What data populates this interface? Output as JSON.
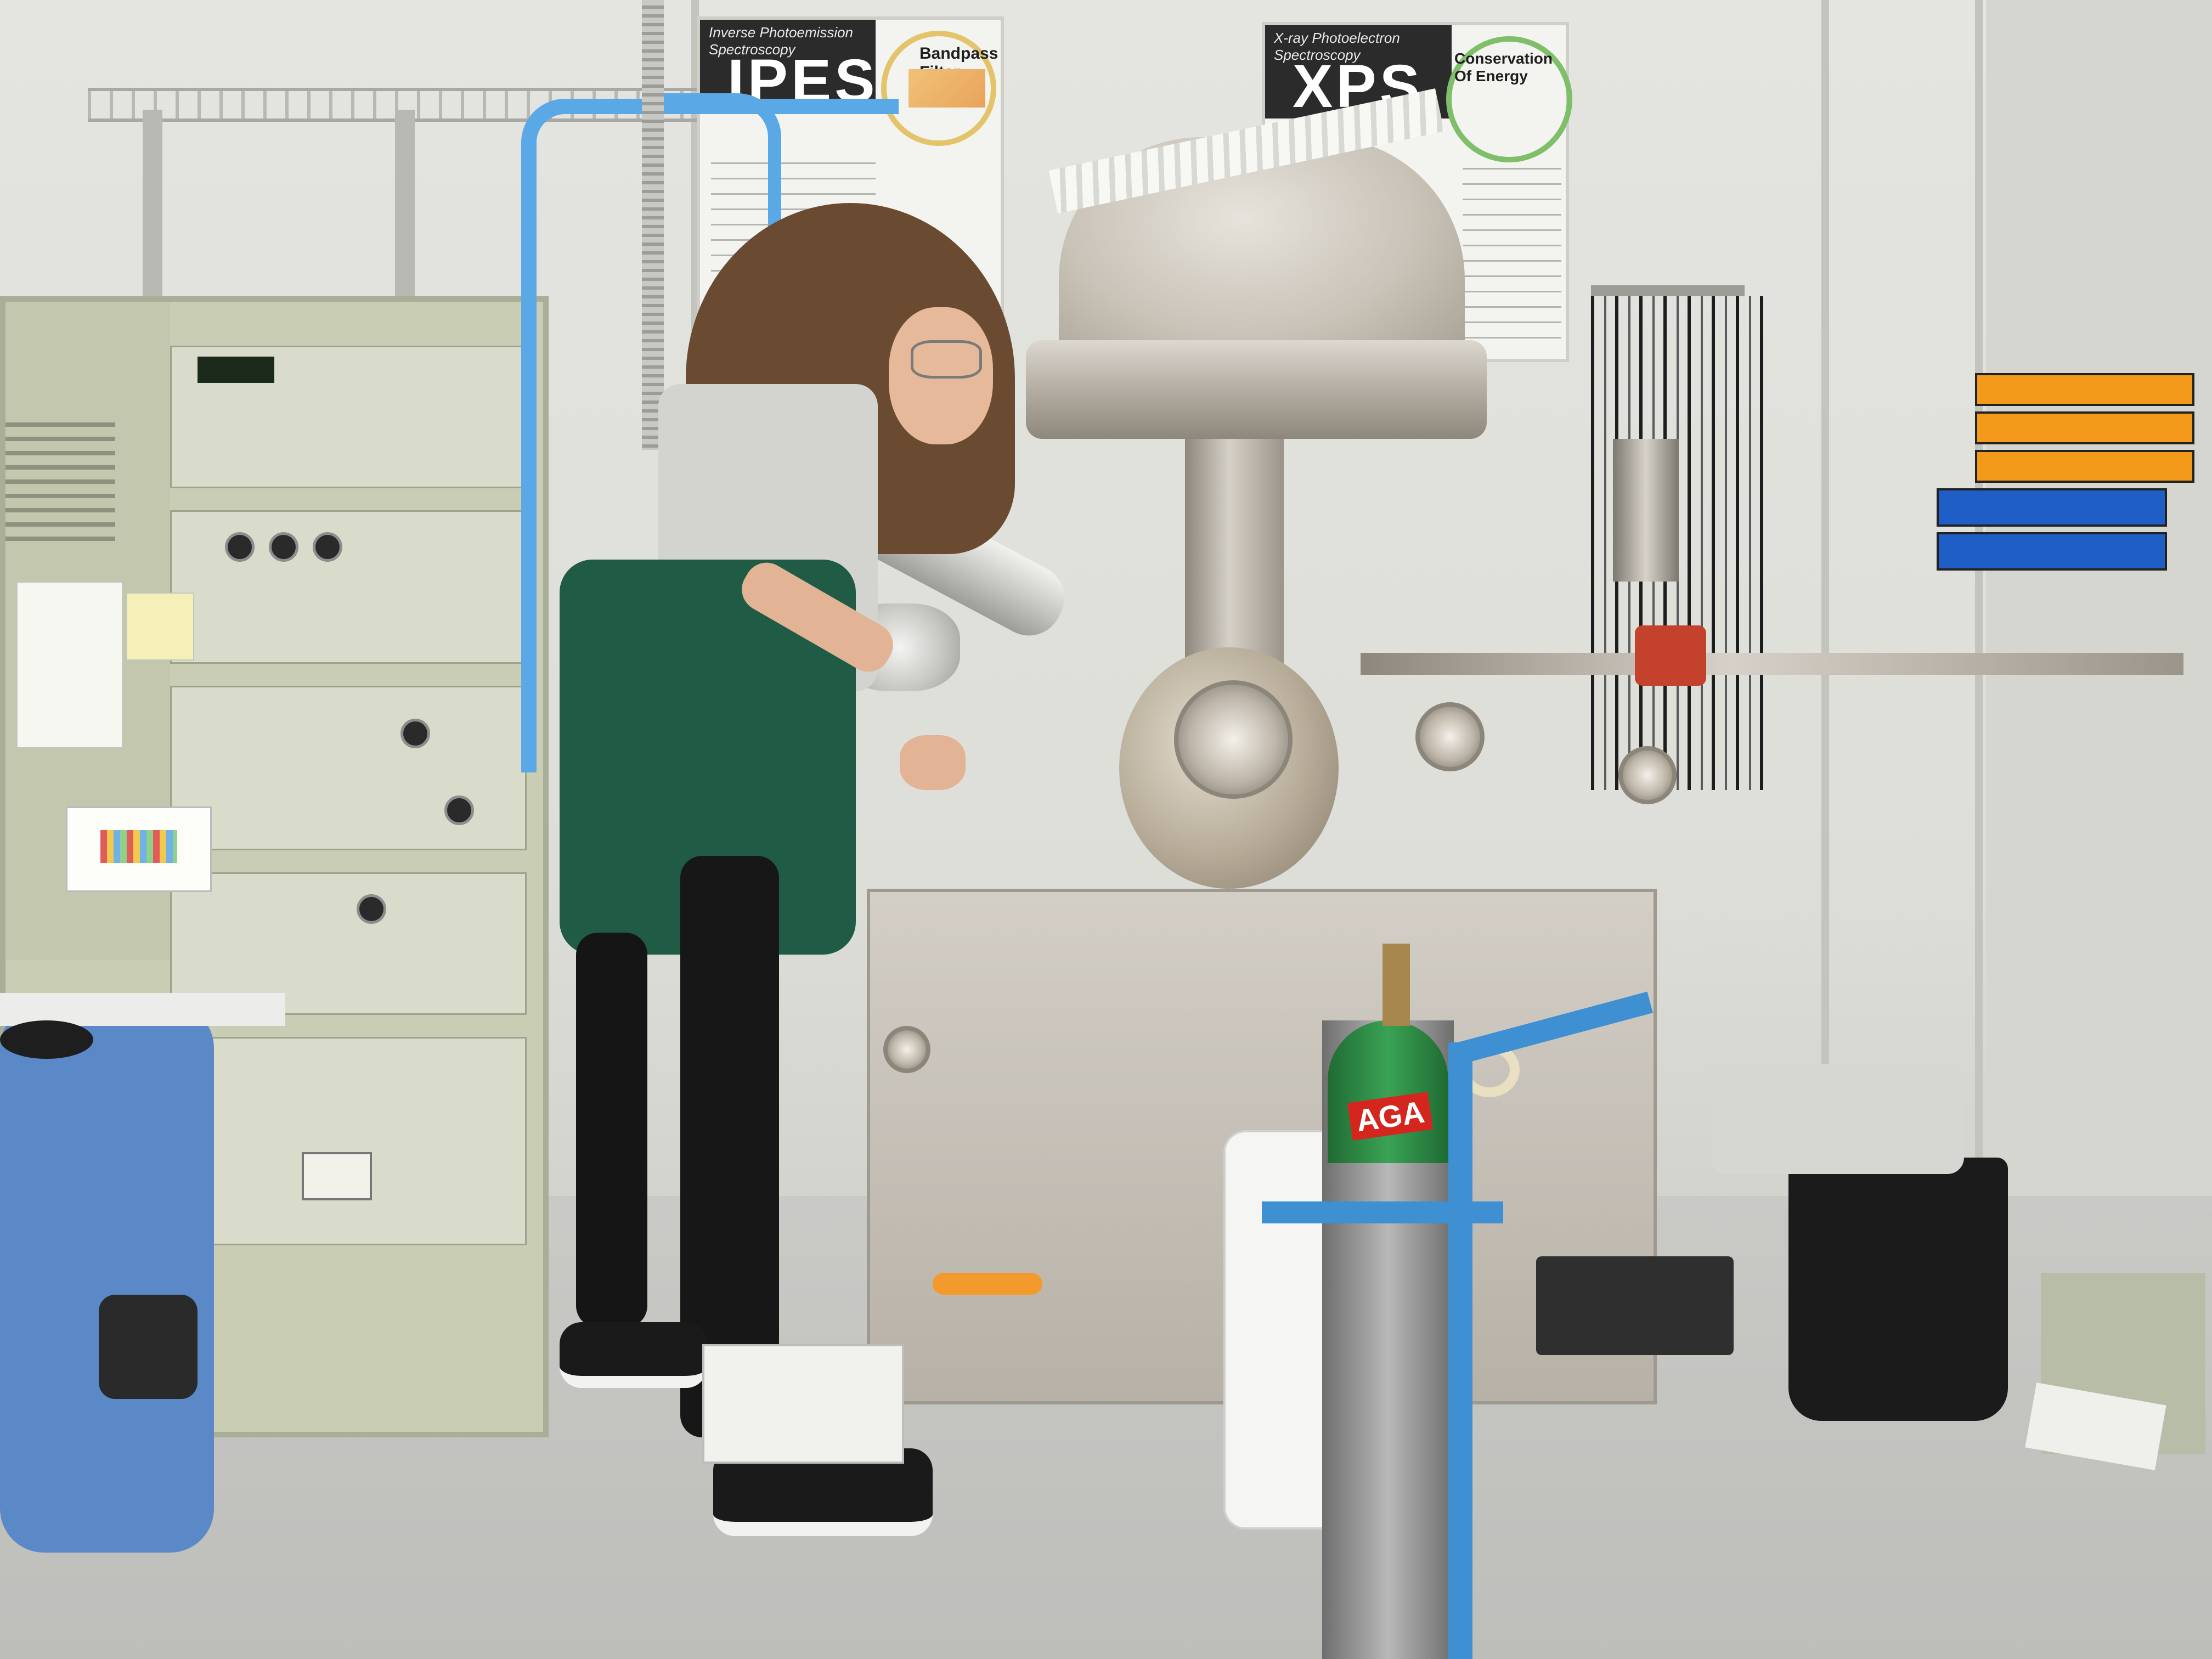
{
  "scene": {
    "description_label": "Photo: researcher at a surface science vacuum system in a laboratory"
  },
  "posters": [
    {
      "subtitle": "Inverse Photoemission Spectroscopy",
      "title": "IPES",
      "panel_title": "Bandpass Filter"
    },
    {
      "subtitle": "X-ray Photoelectron Spectroscopy",
      "title": "XPS",
      "panel_title": "Conservation Of Energy"
    }
  ],
  "cylinder": {
    "brand": "AGA"
  },
  "colors": {
    "wall": "#e2e2de",
    "floor": "#c4c4c1",
    "rack_beige": "#c8cdb4",
    "steel": "#c9c3b8",
    "cable_blue": "#5aa9e6",
    "sweater_green": "#1f5b45",
    "cylinder_green": "#2f8a43",
    "trolley_blue": "#3f8fd3",
    "bin_orange": "#f39a1a",
    "bin_blue": "#1f5ec7",
    "chair_blue": "#5b88c6"
  }
}
